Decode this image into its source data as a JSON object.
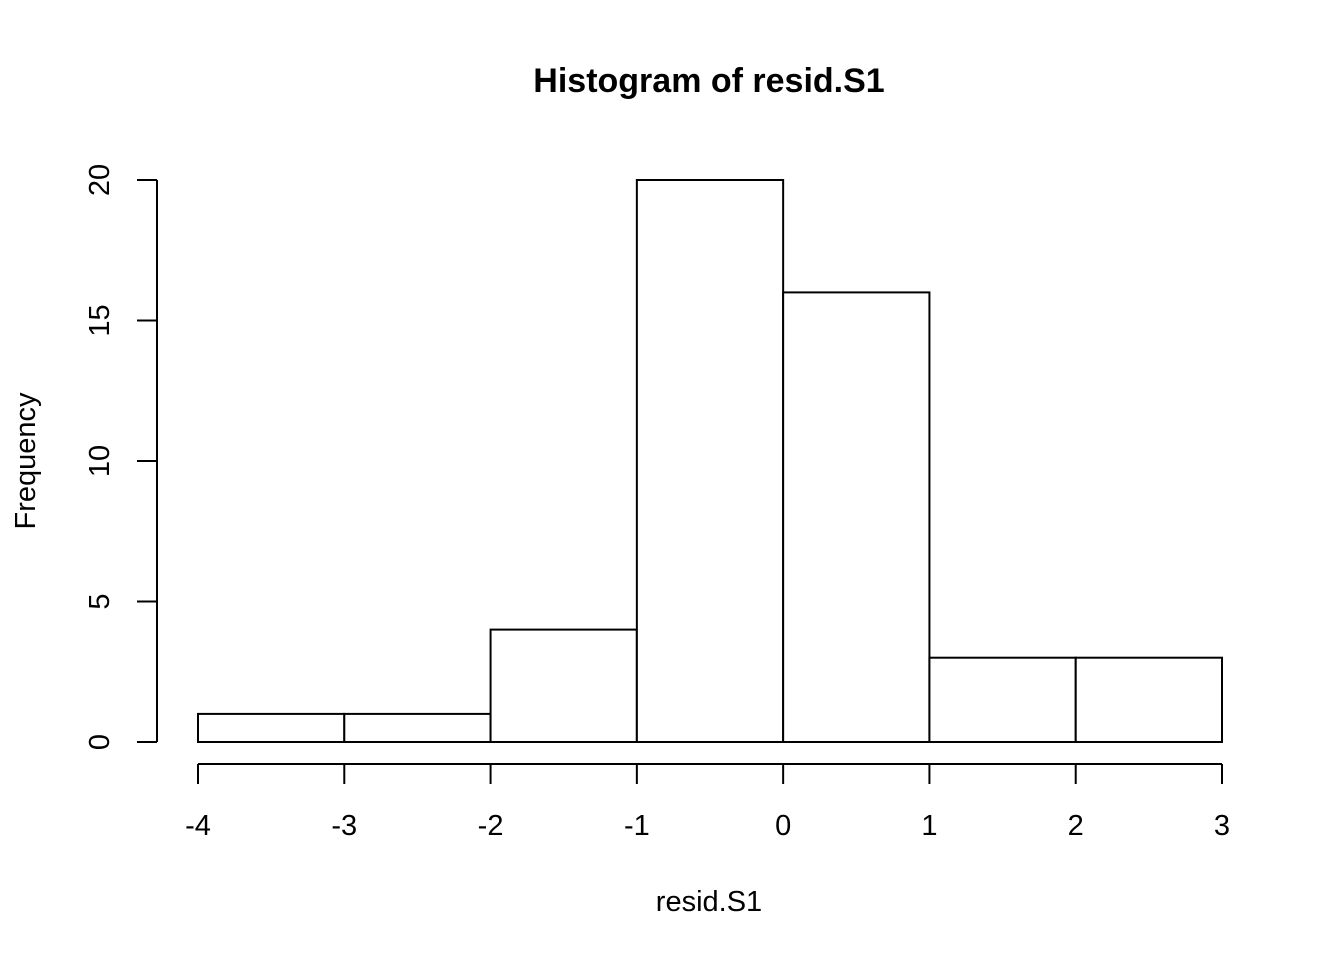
{
  "chart_data": {
    "type": "bar",
    "title": "Histogram of resid.S1",
    "xlabel": "resid.S1",
    "ylabel": "Frequency",
    "bins": [
      {
        "from": -4,
        "to": -3,
        "count": 1
      },
      {
        "from": -3,
        "to": -2,
        "count": 1
      },
      {
        "from": -2,
        "to": -1,
        "count": 4
      },
      {
        "from": -1,
        "to": 0,
        "count": 20
      },
      {
        "from": 0,
        "to": 1,
        "count": 16
      },
      {
        "from": 1,
        "to": 2,
        "count": 3
      },
      {
        "from": 2,
        "to": 3,
        "count": 3
      }
    ],
    "xlim": [
      -4,
      3
    ],
    "ylim": [
      0,
      20
    ],
    "xticks": [
      -4,
      -3,
      -2,
      -1,
      0,
      1,
      2,
      3
    ],
    "yticks": [
      0,
      5,
      10,
      15,
      20
    ],
    "bar_fill": "#ffffff",
    "bar_stroke": "#000000",
    "grid": false,
    "legend": "none"
  }
}
